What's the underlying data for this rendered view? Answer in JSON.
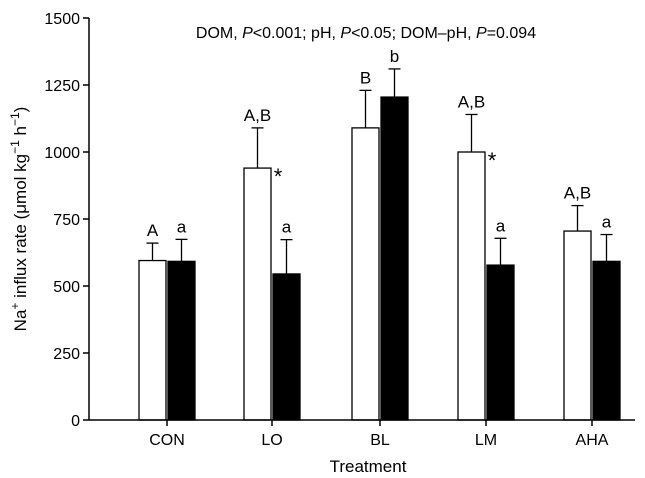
{
  "chart_data": {
    "type": "bar",
    "title": "",
    "annotation": {
      "parts": [
        {
          "text": "DOM, ",
          "italic": false
        },
        {
          "text": "P",
          "italic": true
        },
        {
          "text": "<0.001; pH, ",
          "italic": false
        },
        {
          "text": "P",
          "italic": true
        },
        {
          "text": "<0.05; DOM–pH, ",
          "italic": false
        },
        {
          "text": "P",
          "italic": true
        },
        {
          "text": "=0.094",
          "italic": false
        }
      ]
    },
    "xlabel": "Treatment",
    "ylabel": {
      "parts": [
        {
          "text": "Na",
          "sup": false
        },
        {
          "text": "+",
          "sup": true
        },
        {
          "text": " influx rate (μmol kg",
          "sup": false
        },
        {
          "text": "−1",
          "sup": true
        },
        {
          "text": " h",
          "sup": false
        },
        {
          "text": "−1",
          "sup": true
        },
        {
          "text": ")",
          "sup": false
        }
      ]
    },
    "ylim": [
      0,
      1500
    ],
    "yticks": [
      0,
      250,
      500,
      750,
      1000,
      1250,
      1500
    ],
    "ytick_labels": [
      "0",
      "250",
      "500",
      "750",
      "1000",
      "1250",
      "1500"
    ],
    "grid": false,
    "categories": [
      "CON",
      "LO",
      "BL",
      "LM",
      "AHA"
    ],
    "series": [
      {
        "fill": "#ffffff",
        "values": [
          595,
          940,
          1090,
          1000,
          705
        ],
        "errors": [
          65,
          150,
          140,
          140,
          95
        ],
        "labels": [
          "A",
          "A,B",
          "B",
          "A,B",
          "A,B"
        ]
      },
      {
        "fill": "#000000",
        "values": [
          592,
          545,
          1205,
          578,
          592
        ],
        "errors": [
          82,
          128,
          105,
          100,
          100
        ],
        "labels": [
          "a",
          "a",
          "b",
          "a",
          "a"
        ]
      }
    ],
    "significance_marks": [
      {
        "category": "LO",
        "mark": "*"
      },
      {
        "category": "LM",
        "mark": "*"
      }
    ]
  }
}
